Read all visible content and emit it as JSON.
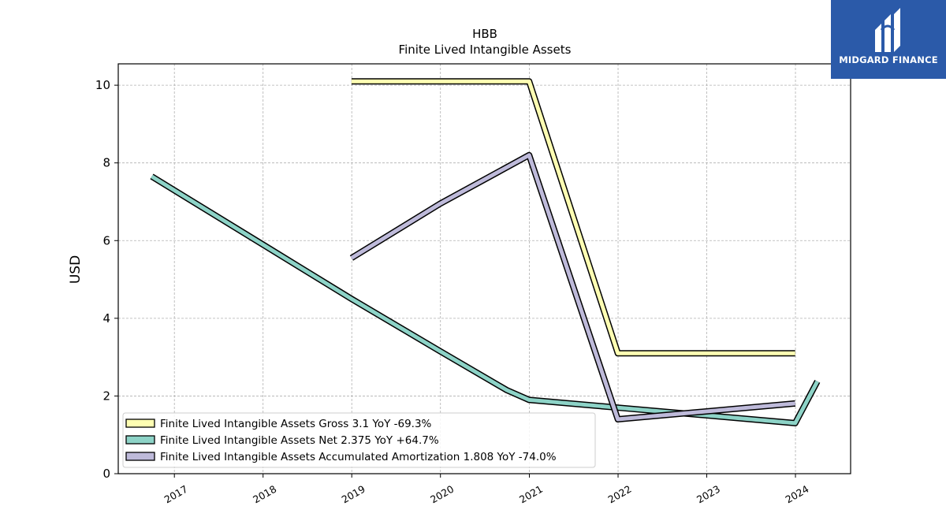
{
  "chart_data": {
    "type": "line",
    "title": "HBB",
    "subtitle": "Finite Lived Intangible Assets",
    "ylabel": "USD",
    "xlabel": "",
    "xlim": [
      "2016-05-15",
      "2024-08-15"
    ],
    "ylim": [
      0,
      10.55
    ],
    "yticks": [
      0,
      2,
      4,
      6,
      8,
      10
    ],
    "xticks": [
      "2017",
      "2018",
      "2019",
      "2020",
      "2021",
      "2022",
      "2023",
      "2024"
    ],
    "grid": true,
    "legend_position": "lower-left",
    "series": [
      {
        "name": "Finite Lived Intangible Assets Gross",
        "legend": "Finite Lived Intangible Assets Gross  3.1 YoY -69.3%",
        "color": "#ffffb3",
        "x": [
          "2018-12-31",
          "2020-12-31",
          "2021-12-31",
          "2023-12-31"
        ],
        "y": [
          10.1,
          10.1,
          3.1,
          3.1
        ]
      },
      {
        "name": "Finite Lived Intangible Assets Net",
        "legend": "Finite Lived Intangible Assets Net  2.375 YoY +64.7%",
        "color": "#8dd3c7",
        "x": [
          "2016-09-30",
          "2017-12-31",
          "2018-12-31",
          "2019-12-31",
          "2020-09-30",
          "2020-12-31",
          "2021-12-31",
          "2023-12-31",
          "2024-03-31"
        ],
        "y": [
          7.65,
          5.9,
          4.5,
          3.15,
          2.15,
          1.9,
          1.7,
          1.3,
          2.375
        ]
      },
      {
        "name": "Finite Lived Intangible Assets Accumulated Amortization",
        "legend": "Finite Lived Intangible Assets Accumulated Amortization  1.808 YoY -74.0%",
        "color": "#bebada",
        "x": [
          "2018-12-31",
          "2019-12-31",
          "2020-12-31",
          "2021-12-31",
          "2023-12-31"
        ],
        "y": [
          5.55,
          6.95,
          8.2,
          1.4,
          1.808
        ]
      }
    ]
  },
  "logo": {
    "text": "MIDGARD FINANCE",
    "background": "#2b5aa9"
  }
}
